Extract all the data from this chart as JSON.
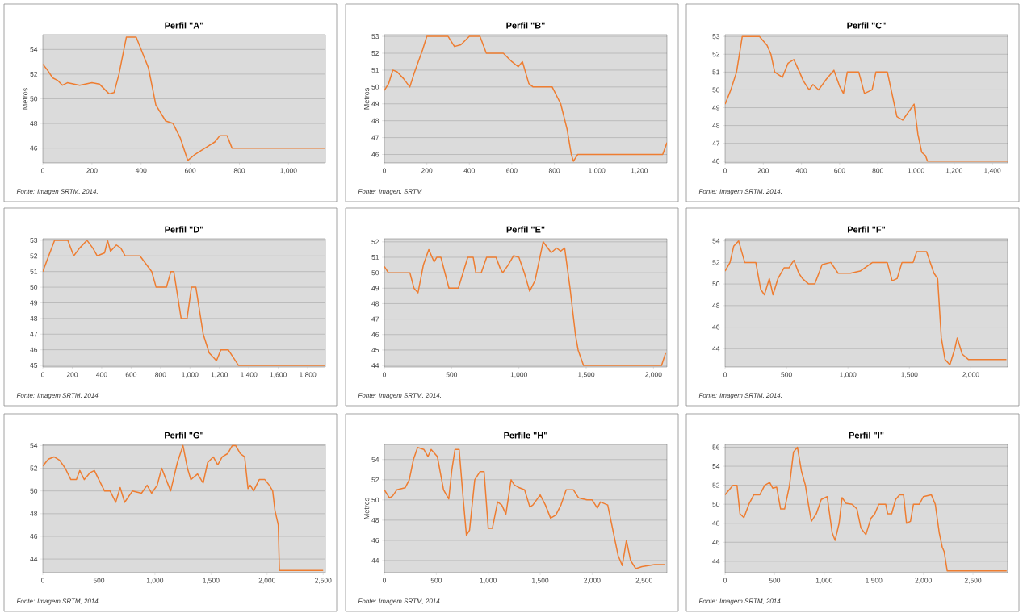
{
  "chart_data": [
    {
      "type": "line",
      "title": "Perfil \"A\"",
      "ylabel": "Metros",
      "annotations": [
        "Fonte: Imagen SRTM, 2014."
      ],
      "color": "#ee7d31",
      "grid": "y",
      "xlim": [
        0,
        1150
      ],
      "ylim": [
        44.8,
        55.2
      ],
      "xticks": [
        0,
        200,
        400,
        600,
        800,
        {
          "value": 1000,
          "label": "1,000"
        }
      ],
      "yticks": [
        46,
        48,
        50,
        52,
        54
      ],
      "x": [
        0,
        20,
        40,
        60,
        80,
        100,
        150,
        200,
        230,
        270,
        290,
        310,
        340,
        380,
        400,
        430,
        460,
        500,
        530,
        560,
        590,
        620,
        660,
        700,
        720,
        750,
        770,
        1150
      ],
      "values": [
        52.8,
        52.3,
        51.7,
        51.5,
        51.1,
        51.3,
        51.1,
        51.3,
        51.2,
        50.4,
        50.5,
        52,
        55,
        55,
        54,
        52.5,
        49.5,
        48.2,
        48,
        46.8,
        45,
        45.5,
        46,
        46.5,
        47,
        47,
        46,
        46
      ]
    },
    {
      "type": "line",
      "title": "Perfil \"B\"",
      "ylabel": "Metros",
      "annotations": [
        "Fonte: Imagen, SRTM"
      ],
      "color": "#ee7d31",
      "grid": "y",
      "xlim": [
        0,
        1330
      ],
      "ylim": [
        45.5,
        53.1
      ],
      "xticks": [
        0,
        200,
        400,
        600,
        800,
        {
          "value": 1000,
          "label": "1,000"
        },
        {
          "value": 1200,
          "label": "1,200"
        }
      ],
      "yticks": [
        46,
        47,
        48,
        49,
        50,
        51,
        52,
        53
      ],
      "x": [
        0,
        20,
        40,
        60,
        90,
        120,
        140,
        180,
        200,
        300,
        330,
        360,
        400,
        450,
        480,
        560,
        600,
        630,
        650,
        680,
        700,
        790,
        830,
        860,
        880,
        890,
        910,
        1310,
        1330
      ],
      "values": [
        49.8,
        50.2,
        51,
        50.9,
        50.5,
        50,
        50.8,
        52.2,
        53,
        53,
        52.4,
        52.5,
        53,
        53,
        52,
        52,
        51.5,
        51.2,
        51.5,
        50.2,
        50,
        50,
        49,
        47.5,
        46,
        45.6,
        46,
        46,
        46.7
      ]
    },
    {
      "type": "line",
      "title": "Perfil \"C\"",
      "annotations": [
        "Fonte: Imagem SRTM, 2014."
      ],
      "color": "#ee7d31",
      "grid": "y",
      "xlim": [
        0,
        1480
      ],
      "ylim": [
        45.9,
        53.1
      ],
      "xticks": [
        0,
        200,
        400,
        600,
        800,
        {
          "value": 1000,
          "label": "1,000"
        },
        {
          "value": 1200,
          "label": "1,200"
        },
        {
          "value": 1400,
          "label": "1,400"
        }
      ],
      "yticks": [
        46,
        47,
        48,
        49,
        50,
        51,
        52,
        53
      ],
      "x": [
        0,
        30,
        60,
        90,
        180,
        220,
        240,
        260,
        300,
        330,
        360,
        390,
        410,
        440,
        460,
        490,
        530,
        570,
        600,
        620,
        640,
        700,
        730,
        770,
        790,
        850,
        880,
        900,
        930,
        990,
        1010,
        1030,
        1050,
        1060,
        1480
      ],
      "values": [
        49.2,
        50,
        51,
        53,
        53,
        52.5,
        52,
        51,
        50.7,
        51.5,
        51.7,
        51,
        50.5,
        50,
        50.3,
        50,
        50.6,
        51.1,
        50.2,
        49.8,
        51,
        51,
        49.8,
        50,
        51,
        51,
        49.5,
        48.5,
        48.3,
        49.2,
        47.5,
        46.5,
        46.3,
        46,
        46
      ]
    },
    {
      "type": "line",
      "title": "Perfil \"D\"",
      "annotations": [
        "Fonte: Imagem SRTM, 2014."
      ],
      "color": "#ee7d31",
      "grid": "y",
      "xlim": [
        0,
        1920
      ],
      "ylim": [
        44.9,
        53.1
      ],
      "xticks": [
        0,
        200,
        400,
        600,
        800,
        {
          "value": 1000,
          "label": "1,000"
        },
        {
          "value": 1200,
          "label": "1,200"
        },
        {
          "value": 1400,
          "label": "1,400"
        },
        {
          "value": 1600,
          "label": "1,600"
        },
        {
          "value": 1800,
          "label": "1,800"
        }
      ],
      "yticks": [
        45,
        46,
        47,
        48,
        49,
        50,
        51,
        52,
        53
      ],
      "x": [
        0,
        40,
        80,
        170,
        210,
        250,
        300,
        340,
        370,
        420,
        440,
        460,
        500,
        530,
        560,
        660,
        700,
        740,
        770,
        840,
        870,
        890,
        940,
        980,
        1010,
        1040,
        1090,
        1130,
        1160,
        1180,
        1210,
        1260,
        1330,
        1920
      ],
      "values": [
        51,
        52,
        53,
        53,
        52,
        52.5,
        53,
        52.5,
        52,
        52.2,
        53,
        52.3,
        52.7,
        52.5,
        52,
        52,
        51.5,
        51,
        50,
        50,
        51,
        51,
        48,
        48,
        50,
        50,
        47,
        45.8,
        45.5,
        45.3,
        46,
        46,
        45,
        45
      ]
    },
    {
      "type": "line",
      "title": "Perfil \"E\"",
      "annotations": [
        "Fonte: Imagem SRTM, 2014."
      ],
      "color": "#ee7d31",
      "grid": "y",
      "xlim": [
        0,
        2100
      ],
      "ylim": [
        43.9,
        52.2
      ],
      "xticks": [
        0,
        500,
        {
          "value": 1000,
          "label": "1,000"
        },
        {
          "value": 1500,
          "label": "1,500"
        },
        {
          "value": 2000,
          "label": "2,000"
        }
      ],
      "yticks": [
        44,
        45,
        46,
        47,
        48,
        49,
        50,
        51,
        52
      ],
      "x": [
        0,
        30,
        190,
        220,
        250,
        290,
        330,
        370,
        390,
        420,
        480,
        550,
        620,
        660,
        680,
        720,
        760,
        830,
        860,
        880,
        920,
        960,
        1000,
        1040,
        1080,
        1120,
        1180,
        1240,
        1280,
        1310,
        1340,
        1380,
        1420,
        1440,
        1480,
        2060,
        2090
      ],
      "values": [
        50.4,
        50,
        50,
        49,
        48.7,
        50.5,
        51.5,
        50.7,
        51,
        51,
        49,
        49,
        51,
        51,
        50,
        50,
        51,
        51,
        50.3,
        50,
        50.5,
        51.1,
        51,
        50,
        48.8,
        49.5,
        52,
        51.3,
        51.6,
        51.4,
        51.6,
        49,
        46,
        45,
        44,
        44,
        44.8
      ]
    },
    {
      "type": "line",
      "title": "Perfil \"F\"",
      "annotations": [
        "Fonte: Imagem SRTM, 2014."
      ],
      "color": "#ee7d31",
      "grid": "y",
      "xlim": [
        0,
        2300
      ],
      "ylim": [
        42.3,
        54.2
      ],
      "xticks": [
        0,
        500,
        {
          "value": 1000,
          "label": "1,000"
        },
        {
          "value": 1500,
          "label": "1,500"
        },
        {
          "value": 2000,
          "label": "2,000"
        }
      ],
      "yticks": [
        44,
        46,
        48,
        50,
        52,
        54
      ],
      "x": [
        0,
        40,
        70,
        110,
        160,
        250,
        290,
        320,
        360,
        390,
        430,
        480,
        520,
        560,
        600,
        630,
        680,
        730,
        790,
        860,
        920,
        1020,
        1100,
        1200,
        1320,
        1360,
        1400,
        1440,
        1530,
        1560,
        1640,
        1700,
        1730,
        1760,
        1790,
        1830,
        1870,
        1890,
        1930,
        1980,
        2290
      ],
      "values": [
        51.2,
        52,
        53.5,
        54,
        52,
        52,
        49.5,
        49,
        50.5,
        49,
        50.5,
        51.5,
        51.5,
        52.2,
        51,
        50.5,
        50,
        50,
        51.8,
        52,
        51,
        51,
        51.2,
        52,
        52,
        50.3,
        50.5,
        52,
        52,
        53,
        53,
        51,
        50.5,
        45,
        43,
        42.5,
        44,
        45,
        43.5,
        43,
        43
      ]
    },
    {
      "type": "line",
      "title": "Perfil \"G\"",
      "annotations": [
        "Fonte: Imagem SRTM, 2014."
      ],
      "color": "#ee7d31",
      "grid": "y",
      "xlim": [
        0,
        2520
      ],
      "ylim": [
        42.8,
        54.1
      ],
      "xticks": [
        0,
        500,
        {
          "value": 1000,
          "label": "1,000"
        },
        {
          "value": 1500,
          "label": "1,500"
        },
        {
          "value": 2000,
          "label": "2,000"
        },
        {
          "value": 2500,
          "label": "2,500"
        }
      ],
      "yticks": [
        44,
        46,
        48,
        50,
        52,
        54
      ],
      "x": [
        0,
        50,
        100,
        150,
        200,
        250,
        300,
        330,
        370,
        420,
        460,
        500,
        550,
        600,
        650,
        690,
        730,
        800,
        880,
        930,
        970,
        1020,
        1060,
        1100,
        1140,
        1200,
        1250,
        1290,
        1320,
        1380,
        1430,
        1470,
        1520,
        1560,
        1600,
        1650,
        1690,
        1720,
        1760,
        1800,
        1830,
        1850,
        1880,
        1930,
        1980,
        2020,
        2050,
        2070,
        2100,
        2110,
        2500
      ],
      "values": [
        52.2,
        52.8,
        53,
        52.7,
        52,
        51,
        51,
        51.8,
        51,
        51.6,
        51.8,
        51,
        50,
        50,
        49,
        50.3,
        49,
        50,
        49.8,
        50.5,
        49.8,
        50.5,
        52,
        51,
        50,
        52.5,
        54,
        52,
        51,
        51.5,
        50.7,
        52.5,
        53,
        52.3,
        53,
        53.3,
        54,
        54,
        53.3,
        53,
        50.2,
        50.5,
        50,
        51,
        51,
        50.5,
        50,
        48.3,
        47,
        43,
        43
      ]
    },
    {
      "type": "line",
      "title": "Perfile \"H\"",
      "ylabel": "Metros",
      "annotations": [
        "Fonte: Imagem SRTM, 2014."
      ],
      "color": "#ee7d31",
      "grid": "y",
      "xlim": [
        0,
        2720
      ],
      "ylim": [
        42.8,
        55.5
      ],
      "xticks": [
        0,
        500,
        {
          "value": 1000,
          "label": "1,000"
        },
        {
          "value": 1500,
          "label": "1,500"
        },
        {
          "value": 2000,
          "label": "2,000"
        },
        {
          "value": 2500,
          "label": "2,500"
        }
      ],
      "yticks": [
        44,
        46,
        48,
        50,
        52,
        54
      ],
      "x": [
        0,
        50,
        80,
        120,
        200,
        240,
        280,
        320,
        380,
        420,
        450,
        510,
        570,
        620,
        650,
        680,
        720,
        760,
        790,
        820,
        870,
        920,
        960,
        1000,
        1040,
        1090,
        1130,
        1170,
        1220,
        1250,
        1300,
        1350,
        1400,
        1430,
        1500,
        1550,
        1600,
        1650,
        1700,
        1750,
        1820,
        1870,
        1950,
        2000,
        2050,
        2080,
        2150,
        2200,
        2250,
        2290,
        2330,
        2370,
        2420,
        2480,
        2600,
        2700
      ],
      "values": [
        51,
        50.2,
        50.4,
        51,
        51.2,
        52,
        54,
        55.2,
        55,
        54.3,
        55,
        54.3,
        51,
        50.1,
        53,
        55,
        55,
        50,
        46.5,
        47,
        52,
        52.8,
        52.8,
        47.2,
        47.2,
        49.8,
        49.5,
        48.6,
        52,
        51.5,
        51.2,
        51,
        49.3,
        49.5,
        50.5,
        49.5,
        48.2,
        48.5,
        49.5,
        51,
        51,
        50.2,
        50,
        50,
        49.2,
        49.8,
        49.5,
        47,
        44.5,
        43.5,
        46,
        44,
        43.2,
        43.4,
        43.6,
        43.6
      ]
    },
    {
      "type": "line",
      "title": "Perfil \"I\"",
      "annotations": [
        "Fonte: Imagem SRTM, 2014."
      ],
      "color": "#ee7d31",
      "grid": "y",
      "xlim": [
        0,
        2850
      ],
      "ylim": [
        42.8,
        56.3
      ],
      "xticks": [
        0,
        500,
        {
          "value": 1000,
          "label": "1,000"
        },
        {
          "value": 1500,
          "label": "1,500"
        },
        {
          "value": 2000,
          "label": "2,000"
        },
        {
          "value": 2500,
          "label": "2,500"
        }
      ],
      "yticks": [
        44,
        46,
        48,
        50,
        52,
        54,
        56
      ],
      "x": [
        0,
        40,
        80,
        120,
        150,
        190,
        240,
        290,
        350,
        400,
        450,
        480,
        520,
        560,
        600,
        650,
        690,
        730,
        770,
        810,
        840,
        870,
        920,
        970,
        1030,
        1080,
        1110,
        1150,
        1180,
        1220,
        1280,
        1330,
        1370,
        1420,
        1470,
        1510,
        1550,
        1620,
        1640,
        1680,
        1720,
        1760,
        1800,
        1830,
        1870,
        1900,
        1960,
        2000,
        2080,
        2120,
        2160,
        2190,
        2210,
        2240,
        2840
      ],
      "values": [
        51,
        51.5,
        52,
        52,
        49,
        48.6,
        50,
        51,
        51,
        52,
        52.3,
        51.7,
        51.8,
        49.5,
        49.5,
        52,
        55.5,
        56,
        53.5,
        52,
        50,
        48.2,
        49,
        50.5,
        50.8,
        47,
        46.2,
        48,
        50.7,
        50.1,
        50,
        49.5,
        47.5,
        46.8,
        48.5,
        49,
        50,
        50,
        49,
        49,
        50.5,
        51,
        51,
        48,
        48.2,
        50,
        50,
        50.8,
        51,
        50,
        47,
        45.5,
        45,
        43,
        43
      ]
    }
  ]
}
